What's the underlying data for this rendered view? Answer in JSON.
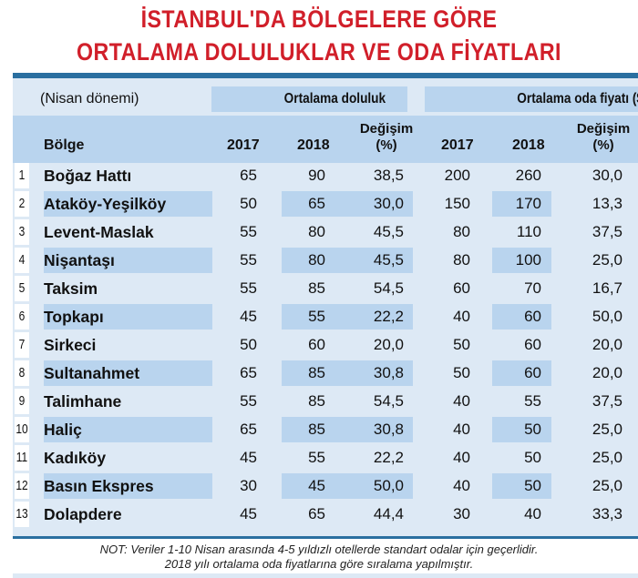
{
  "title": {
    "line1": "İSTANBUL'DA BÖLGELERE GÖRE",
    "line2": "ORTALAMA DOLULUKLAR VE ODA FİYATLARI"
  },
  "header": {
    "period": "(Nisan dönemi)",
    "occupancy_group": "Ortalama doluluk",
    "price_group": "Ortalama oda fiyatı ($)",
    "region": "Bölge",
    "year1": "2017",
    "year2": "2018",
    "change_line1": "Değişim",
    "change_line2": "(%)"
  },
  "rows": [
    {
      "no": "1",
      "region": "Boğaz Hattı",
      "occ2017": "65",
      "occ2018": "90",
      "occChange": "38,5",
      "price2017": "200",
      "price2018": "260",
      "priceChange": "30,0"
    },
    {
      "no": "2",
      "region": "Ataköy-Yeşilköy",
      "occ2017": "50",
      "occ2018": "65",
      "occChange": "30,0",
      "price2017": "150",
      "price2018": "170",
      "priceChange": "13,3"
    },
    {
      "no": "3",
      "region": "Levent-Maslak",
      "occ2017": "55",
      "occ2018": "80",
      "occChange": "45,5",
      "price2017": "80",
      "price2018": "110",
      "priceChange": "37,5"
    },
    {
      "no": "4",
      "region": "Nişantaşı",
      "occ2017": "55",
      "occ2018": "80",
      "occChange": "45,5",
      "price2017": "80",
      "price2018": "100",
      "priceChange": "25,0"
    },
    {
      "no": "5",
      "region": "Taksim",
      "occ2017": "55",
      "occ2018": "85",
      "occChange": "54,5",
      "price2017": "60",
      "price2018": "70",
      "priceChange": "16,7"
    },
    {
      "no": "6",
      "region": "Topkapı",
      "occ2017": "45",
      "occ2018": "55",
      "occChange": "22,2",
      "price2017": "40",
      "price2018": "60",
      "priceChange": "50,0"
    },
    {
      "no": "7",
      "region": "Sirkeci",
      "occ2017": "50",
      "occ2018": "60",
      "occChange": "20,0",
      "price2017": "50",
      "price2018": "60",
      "priceChange": "20,0"
    },
    {
      "no": "8",
      "region": "Sultanahmet",
      "occ2017": "65",
      "occ2018": "85",
      "occChange": "30,8",
      "price2017": "50",
      "price2018": "60",
      "priceChange": "20,0"
    },
    {
      "no": "9",
      "region": "Talimhane",
      "occ2017": "55",
      "occ2018": "85",
      "occChange": "54,5",
      "price2017": "40",
      "price2018": "55",
      "priceChange": "37,5"
    },
    {
      "no": "10",
      "region": "Haliç",
      "occ2017": "65",
      "occ2018": "85",
      "occChange": "30,8",
      "price2017": "40",
      "price2018": "50",
      "priceChange": "25,0"
    },
    {
      "no": "11",
      "region": "Kadıköy",
      "occ2017": "45",
      "occ2018": "55",
      "occChange": "22,2",
      "price2017": "40",
      "price2018": "50",
      "priceChange": "25,0"
    },
    {
      "no": "12",
      "region": "Basın Ekspres",
      "occ2017": "30",
      "occ2018": "45",
      "occChange": "50,0",
      "price2017": "40",
      "price2018": "50",
      "priceChange": "25,0"
    },
    {
      "no": "13",
      "region": "Dolapdere",
      "occ2017": "45",
      "occ2018": "65",
      "occChange": "44,4",
      "price2017": "30",
      "price2018": "40",
      "priceChange": "33,3"
    }
  ],
  "note": {
    "line1": "NOT: Veriler 1-10 Nisan arasında 4-5 yıldızlı otellerde standart odalar için geçerlidir.",
    "line2": "2018 yılı ortalama oda fiyatlarına göre sıralama yapılmıştır."
  },
  "colors": {
    "title": "#d11f2a",
    "header_band": "#b9d4ee",
    "table_bg": "#dde9f5",
    "rule": "#2a6fa0"
  }
}
